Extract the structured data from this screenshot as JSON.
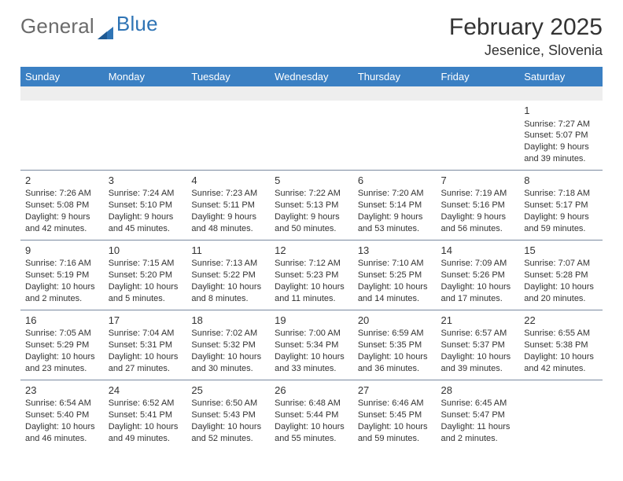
{
  "logo": {
    "part1": "General",
    "part2": "Blue"
  },
  "title": "February 2025",
  "subtitle": "Jesenice, Slovenia",
  "colors": {
    "header_bg": "#3b80c3",
    "header_text": "#ffffff",
    "logo_gray": "#6b6b6b",
    "logo_blue": "#2f74b5",
    "border": "#7a8aa0",
    "empty_row_bg": "#eeeeee",
    "text": "#333333",
    "background": "#ffffff"
  },
  "typography": {
    "title_fontsize": 30,
    "subtitle_fontsize": 18,
    "logo_fontsize": 26,
    "weekday_fontsize": 13,
    "daynum_fontsize": 13,
    "body_fontsize": 11
  },
  "weekdays": [
    "Sunday",
    "Monday",
    "Tuesday",
    "Wednesday",
    "Thursday",
    "Friday",
    "Saturday"
  ],
  "weeks": [
    [
      null,
      null,
      null,
      null,
      null,
      null,
      {
        "day": "1",
        "sunrise": "Sunrise: 7:27 AM",
        "sunset": "Sunset: 5:07 PM",
        "daylight": "Daylight: 9 hours and 39 minutes."
      }
    ],
    [
      {
        "day": "2",
        "sunrise": "Sunrise: 7:26 AM",
        "sunset": "Sunset: 5:08 PM",
        "daylight": "Daylight: 9 hours and 42 minutes."
      },
      {
        "day": "3",
        "sunrise": "Sunrise: 7:24 AM",
        "sunset": "Sunset: 5:10 PM",
        "daylight": "Daylight: 9 hours and 45 minutes."
      },
      {
        "day": "4",
        "sunrise": "Sunrise: 7:23 AM",
        "sunset": "Sunset: 5:11 PM",
        "daylight": "Daylight: 9 hours and 48 minutes."
      },
      {
        "day": "5",
        "sunrise": "Sunrise: 7:22 AM",
        "sunset": "Sunset: 5:13 PM",
        "daylight": "Daylight: 9 hours and 50 minutes."
      },
      {
        "day": "6",
        "sunrise": "Sunrise: 7:20 AM",
        "sunset": "Sunset: 5:14 PM",
        "daylight": "Daylight: 9 hours and 53 minutes."
      },
      {
        "day": "7",
        "sunrise": "Sunrise: 7:19 AM",
        "sunset": "Sunset: 5:16 PM",
        "daylight": "Daylight: 9 hours and 56 minutes."
      },
      {
        "day": "8",
        "sunrise": "Sunrise: 7:18 AM",
        "sunset": "Sunset: 5:17 PM",
        "daylight": "Daylight: 9 hours and 59 minutes."
      }
    ],
    [
      {
        "day": "9",
        "sunrise": "Sunrise: 7:16 AM",
        "sunset": "Sunset: 5:19 PM",
        "daylight": "Daylight: 10 hours and 2 minutes."
      },
      {
        "day": "10",
        "sunrise": "Sunrise: 7:15 AM",
        "sunset": "Sunset: 5:20 PM",
        "daylight": "Daylight: 10 hours and 5 minutes."
      },
      {
        "day": "11",
        "sunrise": "Sunrise: 7:13 AM",
        "sunset": "Sunset: 5:22 PM",
        "daylight": "Daylight: 10 hours and 8 minutes."
      },
      {
        "day": "12",
        "sunrise": "Sunrise: 7:12 AM",
        "sunset": "Sunset: 5:23 PM",
        "daylight": "Daylight: 10 hours and 11 minutes."
      },
      {
        "day": "13",
        "sunrise": "Sunrise: 7:10 AM",
        "sunset": "Sunset: 5:25 PM",
        "daylight": "Daylight: 10 hours and 14 minutes."
      },
      {
        "day": "14",
        "sunrise": "Sunrise: 7:09 AM",
        "sunset": "Sunset: 5:26 PM",
        "daylight": "Daylight: 10 hours and 17 minutes."
      },
      {
        "day": "15",
        "sunrise": "Sunrise: 7:07 AM",
        "sunset": "Sunset: 5:28 PM",
        "daylight": "Daylight: 10 hours and 20 minutes."
      }
    ],
    [
      {
        "day": "16",
        "sunrise": "Sunrise: 7:05 AM",
        "sunset": "Sunset: 5:29 PM",
        "daylight": "Daylight: 10 hours and 23 minutes."
      },
      {
        "day": "17",
        "sunrise": "Sunrise: 7:04 AM",
        "sunset": "Sunset: 5:31 PM",
        "daylight": "Daylight: 10 hours and 27 minutes."
      },
      {
        "day": "18",
        "sunrise": "Sunrise: 7:02 AM",
        "sunset": "Sunset: 5:32 PM",
        "daylight": "Daylight: 10 hours and 30 minutes."
      },
      {
        "day": "19",
        "sunrise": "Sunrise: 7:00 AM",
        "sunset": "Sunset: 5:34 PM",
        "daylight": "Daylight: 10 hours and 33 minutes."
      },
      {
        "day": "20",
        "sunrise": "Sunrise: 6:59 AM",
        "sunset": "Sunset: 5:35 PM",
        "daylight": "Daylight: 10 hours and 36 minutes."
      },
      {
        "day": "21",
        "sunrise": "Sunrise: 6:57 AM",
        "sunset": "Sunset: 5:37 PM",
        "daylight": "Daylight: 10 hours and 39 minutes."
      },
      {
        "day": "22",
        "sunrise": "Sunrise: 6:55 AM",
        "sunset": "Sunset: 5:38 PM",
        "daylight": "Daylight: 10 hours and 42 minutes."
      }
    ],
    [
      {
        "day": "23",
        "sunrise": "Sunrise: 6:54 AM",
        "sunset": "Sunset: 5:40 PM",
        "daylight": "Daylight: 10 hours and 46 minutes."
      },
      {
        "day": "24",
        "sunrise": "Sunrise: 6:52 AM",
        "sunset": "Sunset: 5:41 PM",
        "daylight": "Daylight: 10 hours and 49 minutes."
      },
      {
        "day": "25",
        "sunrise": "Sunrise: 6:50 AM",
        "sunset": "Sunset: 5:43 PM",
        "daylight": "Daylight: 10 hours and 52 minutes."
      },
      {
        "day": "26",
        "sunrise": "Sunrise: 6:48 AM",
        "sunset": "Sunset: 5:44 PM",
        "daylight": "Daylight: 10 hours and 55 minutes."
      },
      {
        "day": "27",
        "sunrise": "Sunrise: 6:46 AM",
        "sunset": "Sunset: 5:45 PM",
        "daylight": "Daylight: 10 hours and 59 minutes."
      },
      {
        "day": "28",
        "sunrise": "Sunrise: 6:45 AM",
        "sunset": "Sunset: 5:47 PM",
        "daylight": "Daylight: 11 hours and 2 minutes."
      },
      null
    ]
  ]
}
